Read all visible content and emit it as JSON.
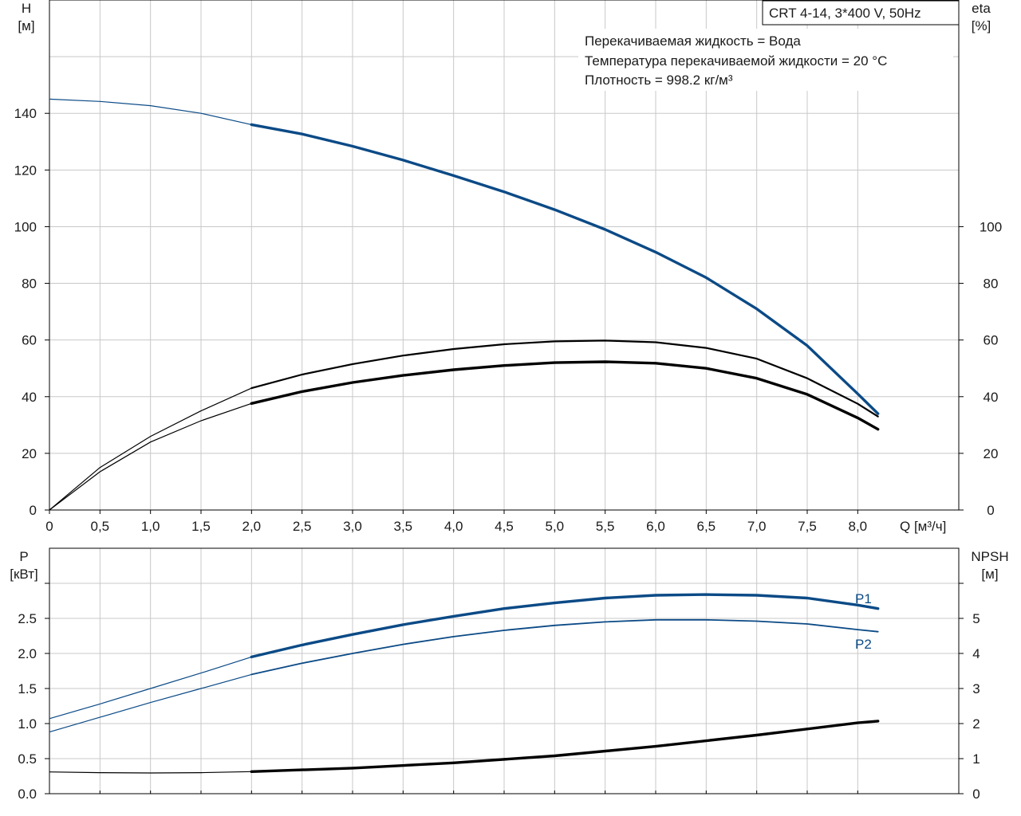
{
  "title": "CRT 4-14, 3*400 V, 50Hz",
  "info_lines": [
    "Перекачиваемая жидкость = Вода",
    "Температура перекачиваемой жидкости = 20 °C",
    "Плотность = 998.2 кг/м³"
  ],
  "colors": {
    "blue": "#0b4a86",
    "black": "#000000",
    "grid": "#c8c8c8"
  },
  "chart_data": [
    {
      "type": "line",
      "name": "head-efficiency",
      "xlabel": "Q [м³/ч]",
      "xlim": [
        0,
        9
      ],
      "x_ticks": [
        0,
        0.5,
        1.0,
        1.5,
        2.0,
        2.5,
        3.0,
        3.5,
        4.0,
        4.5,
        5.0,
        5.5,
        6.0,
        6.5,
        7.0,
        7.5,
        8.0
      ],
      "x_tick_labels": [
        "0",
        "0,5",
        "1,0",
        "1,5",
        "2,0",
        "2,5",
        "3,0",
        "3,5",
        "4,0",
        "4,5",
        "5,0",
        "5,5",
        "6,0",
        "6,5",
        "7,0",
        "7,5",
        "8,0"
      ],
      "y_left": {
        "label_lines": [
          "H",
          "[м]"
        ],
        "ylim": [
          0,
          180
        ],
        "ticks": [
          0,
          20,
          40,
          60,
          80,
          100,
          120,
          140
        ]
      },
      "y_right": {
        "label_lines": [
          "eta",
          "[%]"
        ],
        "ylim": [
          0,
          180
        ],
        "ticks": [
          0,
          20,
          40,
          60,
          80,
          100
        ]
      },
      "grid": true,
      "series": [
        {
          "color": "blue",
          "axis": "left",
          "op_start": 2.0,
          "points": [
            [
              0,
              145
            ],
            [
              0.5,
              144.2
            ],
            [
              1.0,
              142.7
            ],
            [
              1.5,
              140.0
            ],
            [
              2.0,
              136
            ],
            [
              2.5,
              132.7
            ],
            [
              3.0,
              128.4
            ],
            [
              3.5,
              123.5
            ],
            [
              4.0,
              118
            ],
            [
              4.5,
              112.3
            ],
            [
              5.0,
              106
            ],
            [
              5.5,
              99
            ],
            [
              6.0,
              91
            ],
            [
              6.5,
              82
            ],
            [
              7.0,
              71
            ],
            [
              7.5,
              58
            ],
            [
              8.0,
              41
            ],
            [
              8.2,
              34
            ]
          ]
        },
        {
          "color": "black",
          "axis": "right",
          "op_start": 2.0,
          "points": [
            [
              0,
              0
            ],
            [
              0.5,
              15
            ],
            [
              1.0,
              26
            ],
            [
              1.5,
              35
            ],
            [
              2.0,
              43
            ],
            [
              2.5,
              47.8
            ],
            [
              3.0,
              51.5
            ],
            [
              3.5,
              54.5
            ],
            [
              4.0,
              56.8
            ],
            [
              4.5,
              58.5
            ],
            [
              5.0,
              59.5
            ],
            [
              5.5,
              59.8
            ],
            [
              6.0,
              59.2
            ],
            [
              6.5,
              57.2
            ],
            [
              7.0,
              53.4
            ],
            [
              7.5,
              46.5
            ],
            [
              8.0,
              37.5
            ],
            [
              8.2,
              33
            ]
          ]
        },
        {
          "color": "black",
          "axis": "right",
          "op_start": 2.0,
          "points": [
            [
              0,
              0
            ],
            [
              0.5,
              13.5
            ],
            [
              1.0,
              24
            ],
            [
              1.5,
              31.5
            ],
            [
              2.0,
              37.6
            ],
            [
              2.5,
              41.8
            ],
            [
              3.0,
              45
            ],
            [
              3.5,
              47.5
            ],
            [
              4.0,
              49.5
            ],
            [
              4.5,
              51
            ],
            [
              5.0,
              52
            ],
            [
              5.5,
              52.3
            ],
            [
              6.0,
              51.8
            ],
            [
              6.5,
              50
            ],
            [
              7.0,
              46.5
            ],
            [
              7.5,
              40.8
            ],
            [
              8.0,
              32.5
            ],
            [
              8.2,
              28.5
            ]
          ]
        }
      ]
    },
    {
      "type": "line",
      "name": "power-npsh",
      "xlim": [
        0,
        9
      ],
      "x_ticks": [
        0,
        0.5,
        1.0,
        1.5,
        2.0,
        2.5,
        3.0,
        3.5,
        4.0,
        4.5,
        5.0,
        5.5,
        6.0,
        6.5,
        7.0,
        7.5,
        8.0
      ],
      "y_left": {
        "label_lines": [
          "P",
          "[кВт]"
        ],
        "ylim": [
          0,
          3.5
        ],
        "ticks": [
          0.0,
          0.5,
          1.0,
          1.5,
          2.0,
          2.5
        ],
        "tick_labels": [
          "0.0",
          "0.5",
          "1.0",
          "1.5",
          "2.0",
          "2.5"
        ]
      },
      "y_right": {
        "label_lines": [
          "NPSH",
          "[м]"
        ],
        "ylim": [
          0,
          7
        ],
        "ticks": [
          0,
          1,
          2,
          3,
          4,
          5
        ]
      },
      "grid": true,
      "series": [
        {
          "name": "P1",
          "color": "blue",
          "axis": "left",
          "op_start": 2.0,
          "points": [
            [
              0,
              1.07
            ],
            [
              0.5,
              1.28
            ],
            [
              1.0,
              1.5
            ],
            [
              1.5,
              1.72
            ],
            [
              2.0,
              1.95
            ],
            [
              2.5,
              2.12
            ],
            [
              3.0,
              2.27
            ],
            [
              3.5,
              2.41
            ],
            [
              4.0,
              2.53
            ],
            [
              4.5,
              2.64
            ],
            [
              5.0,
              2.72
            ],
            [
              5.5,
              2.79
            ],
            [
              6.0,
              2.83
            ],
            [
              6.5,
              2.84
            ],
            [
              7.0,
              2.83
            ],
            [
              7.5,
              2.79
            ],
            [
              8.0,
              2.69
            ],
            [
              8.2,
              2.64
            ]
          ]
        },
        {
          "name": "P2",
          "color": "blue",
          "axis": "left",
          "op_start": 2.0,
          "points": [
            [
              0,
              0.88
            ],
            [
              0.5,
              1.09
            ],
            [
              1.0,
              1.3
            ],
            [
              1.5,
              1.5
            ],
            [
              2.0,
              1.7
            ],
            [
              2.5,
              1.86
            ],
            [
              3.0,
              2.0
            ],
            [
              3.5,
              2.13
            ],
            [
              4.0,
              2.24
            ],
            [
              4.5,
              2.33
            ],
            [
              5.0,
              2.4
            ],
            [
              5.5,
              2.45
            ],
            [
              6.0,
              2.48
            ],
            [
              6.5,
              2.48
            ],
            [
              7.0,
              2.46
            ],
            [
              7.5,
              2.42
            ],
            [
              8.0,
              2.34
            ],
            [
              8.2,
              2.31
            ]
          ]
        },
        {
          "name": "NPSH",
          "color": "black",
          "axis": "right",
          "op_start": 2.0,
          "points": [
            [
              0,
              0.62
            ],
            [
              0.5,
              0.6
            ],
            [
              1.0,
              0.59
            ],
            [
              1.5,
              0.6
            ],
            [
              2.0,
              0.63
            ],
            [
              3.0,
              0.73
            ],
            [
              4.0,
              0.88
            ],
            [
              5.0,
              1.08
            ],
            [
              6.0,
              1.35
            ],
            [
              7.0,
              1.67
            ],
            [
              8.0,
              2.02
            ],
            [
              8.2,
              2.07
            ]
          ]
        }
      ]
    }
  ]
}
